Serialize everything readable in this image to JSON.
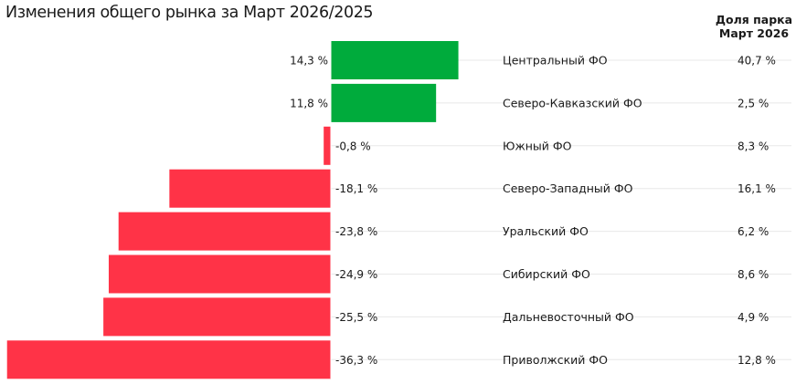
{
  "title": "Изменения общего рынка за Март 2026/2025",
  "share_header": [
    "Доля парка",
    "Март 2026"
  ],
  "colors": {
    "positive": "#00ab3c",
    "negative": "#ff3347",
    "gridline": "#e8e8e8"
  },
  "chart_data": {
    "type": "bar",
    "orientation": "horizontal",
    "title": "Изменения общего рынка за Март 2026/2025",
    "categories": [
      "Центральный ФО",
      "Северо-Кавказский ФО",
      "Южный ФО",
      "Северо-Западный ФО",
      "Уральский ФО",
      "Сибирский ФО",
      "Дальневосточный ФО",
      "Приволжский ФО"
    ],
    "values": [
      14.3,
      11.8,
      -0.8,
      -18.1,
      -23.8,
      -24.9,
      -25.5,
      -36.3
    ],
    "value_labels": [
      "14,3 %",
      "11,8 %",
      "-0,8 %",
      "-18,1 %",
      "-23,8 %",
      "-24,9 %",
      "-25,5 %",
      "-36,3 %"
    ],
    "share_values": [
      40.7,
      2.5,
      8.3,
      16.1,
      6.2,
      8.6,
      4.9,
      12.8
    ],
    "share_labels": [
      "40,7 %",
      "2,5 %",
      "8,3 %",
      "16,1 %",
      "6,2 %",
      "8,6 %",
      "4,9 %",
      "12,8 %"
    ],
    "xlim": [
      -36.3,
      14.3
    ],
    "grid": false,
    "legend": "none"
  }
}
